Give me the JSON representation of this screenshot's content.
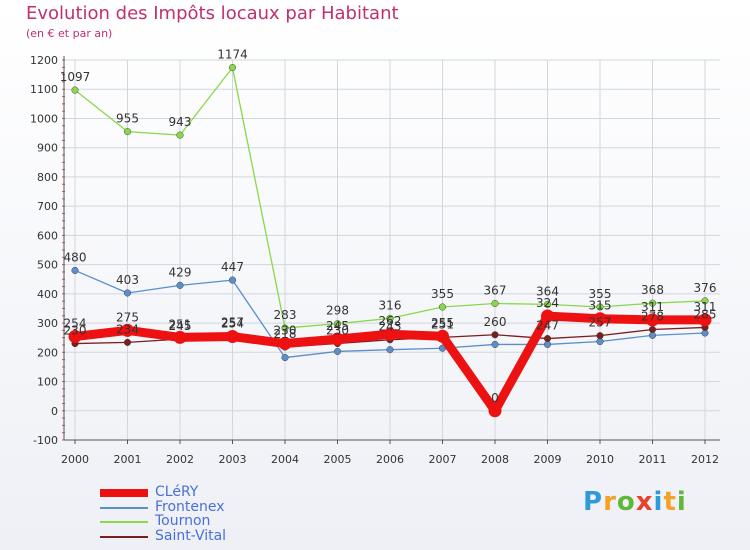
{
  "header": {
    "title": "Evolution des Impôts locaux par Habitant",
    "subtitle": "(en € et par an)"
  },
  "brand": {
    "text": "Proxiti",
    "colors": [
      "#2e9bd8",
      "#f2a227",
      "#5fb83a",
      "#e8412c",
      "#2e9bd8",
      "#f2a227",
      "#5fb83a"
    ]
  },
  "chart_data": {
    "type": "line",
    "title": "Evolution des Impôts locaux par Habitant",
    "subtitle": "(en € et par an)",
    "x": [
      "2000",
      "2001",
      "2002",
      "2003",
      "2004",
      "2005",
      "2006",
      "2007",
      "2008",
      "2009",
      "2010",
      "2011",
      "2012"
    ],
    "ylim": [
      -100,
      1200
    ],
    "yticks": [
      -100,
      0,
      100,
      200,
      300,
      400,
      500,
      600,
      700,
      800,
      900,
      1000,
      1100,
      1200
    ],
    "grid": true,
    "legend_position": "bottom-left",
    "series": [
      {
        "name": "Tournon",
        "color": "#88d84a",
        "values": [
          1097,
          955,
          943,
          1174,
          283,
          298,
          316,
          355,
          367,
          364,
          355,
          368,
          376
        ],
        "labels": [
          "1097",
          "955",
          "943",
          "1174",
          "283",
          "298",
          "316",
          "355",
          "367",
          "364",
          "355",
          "368",
          "376"
        ]
      },
      {
        "name": "Frontenex",
        "color": "#5a8fcc",
        "values": [
          480,
          403,
          429,
          447,
          182,
          203,
          209,
          214,
          227,
          227,
          237,
          258,
          266
        ],
        "labels": [
          "480",
          "403",
          "429",
          "447",
          "",
          "",
          "",
          "",
          "",
          "",
          "",
          "",
          ""
        ]
      },
      {
        "name": "Saint-Vital",
        "color": "#7a1e1e",
        "values": [
          230,
          234,
          245,
          257,
          218,
          230,
          243,
          251,
          260,
          247,
          257,
          278,
          285
        ],
        "labels": [
          "230",
          "234",
          "245",
          "257",
          "218",
          "230",
          "243",
          "251",
          "260",
          "247",
          "257",
          "278",
          "285"
        ]
      },
      {
        "name": "CLéRY",
        "color": "#ee1111",
        "values": [
          254,
          275,
          251,
          254,
          230,
          245,
          262,
          255,
          0,
          324,
          315,
          311,
          311
        ],
        "labels": [
          "254",
          "275",
          "251",
          "254",
          "230",
          "245",
          "262",
          "255",
          "0",
          "324",
          "315",
          "311",
          "311"
        ]
      }
    ]
  }
}
